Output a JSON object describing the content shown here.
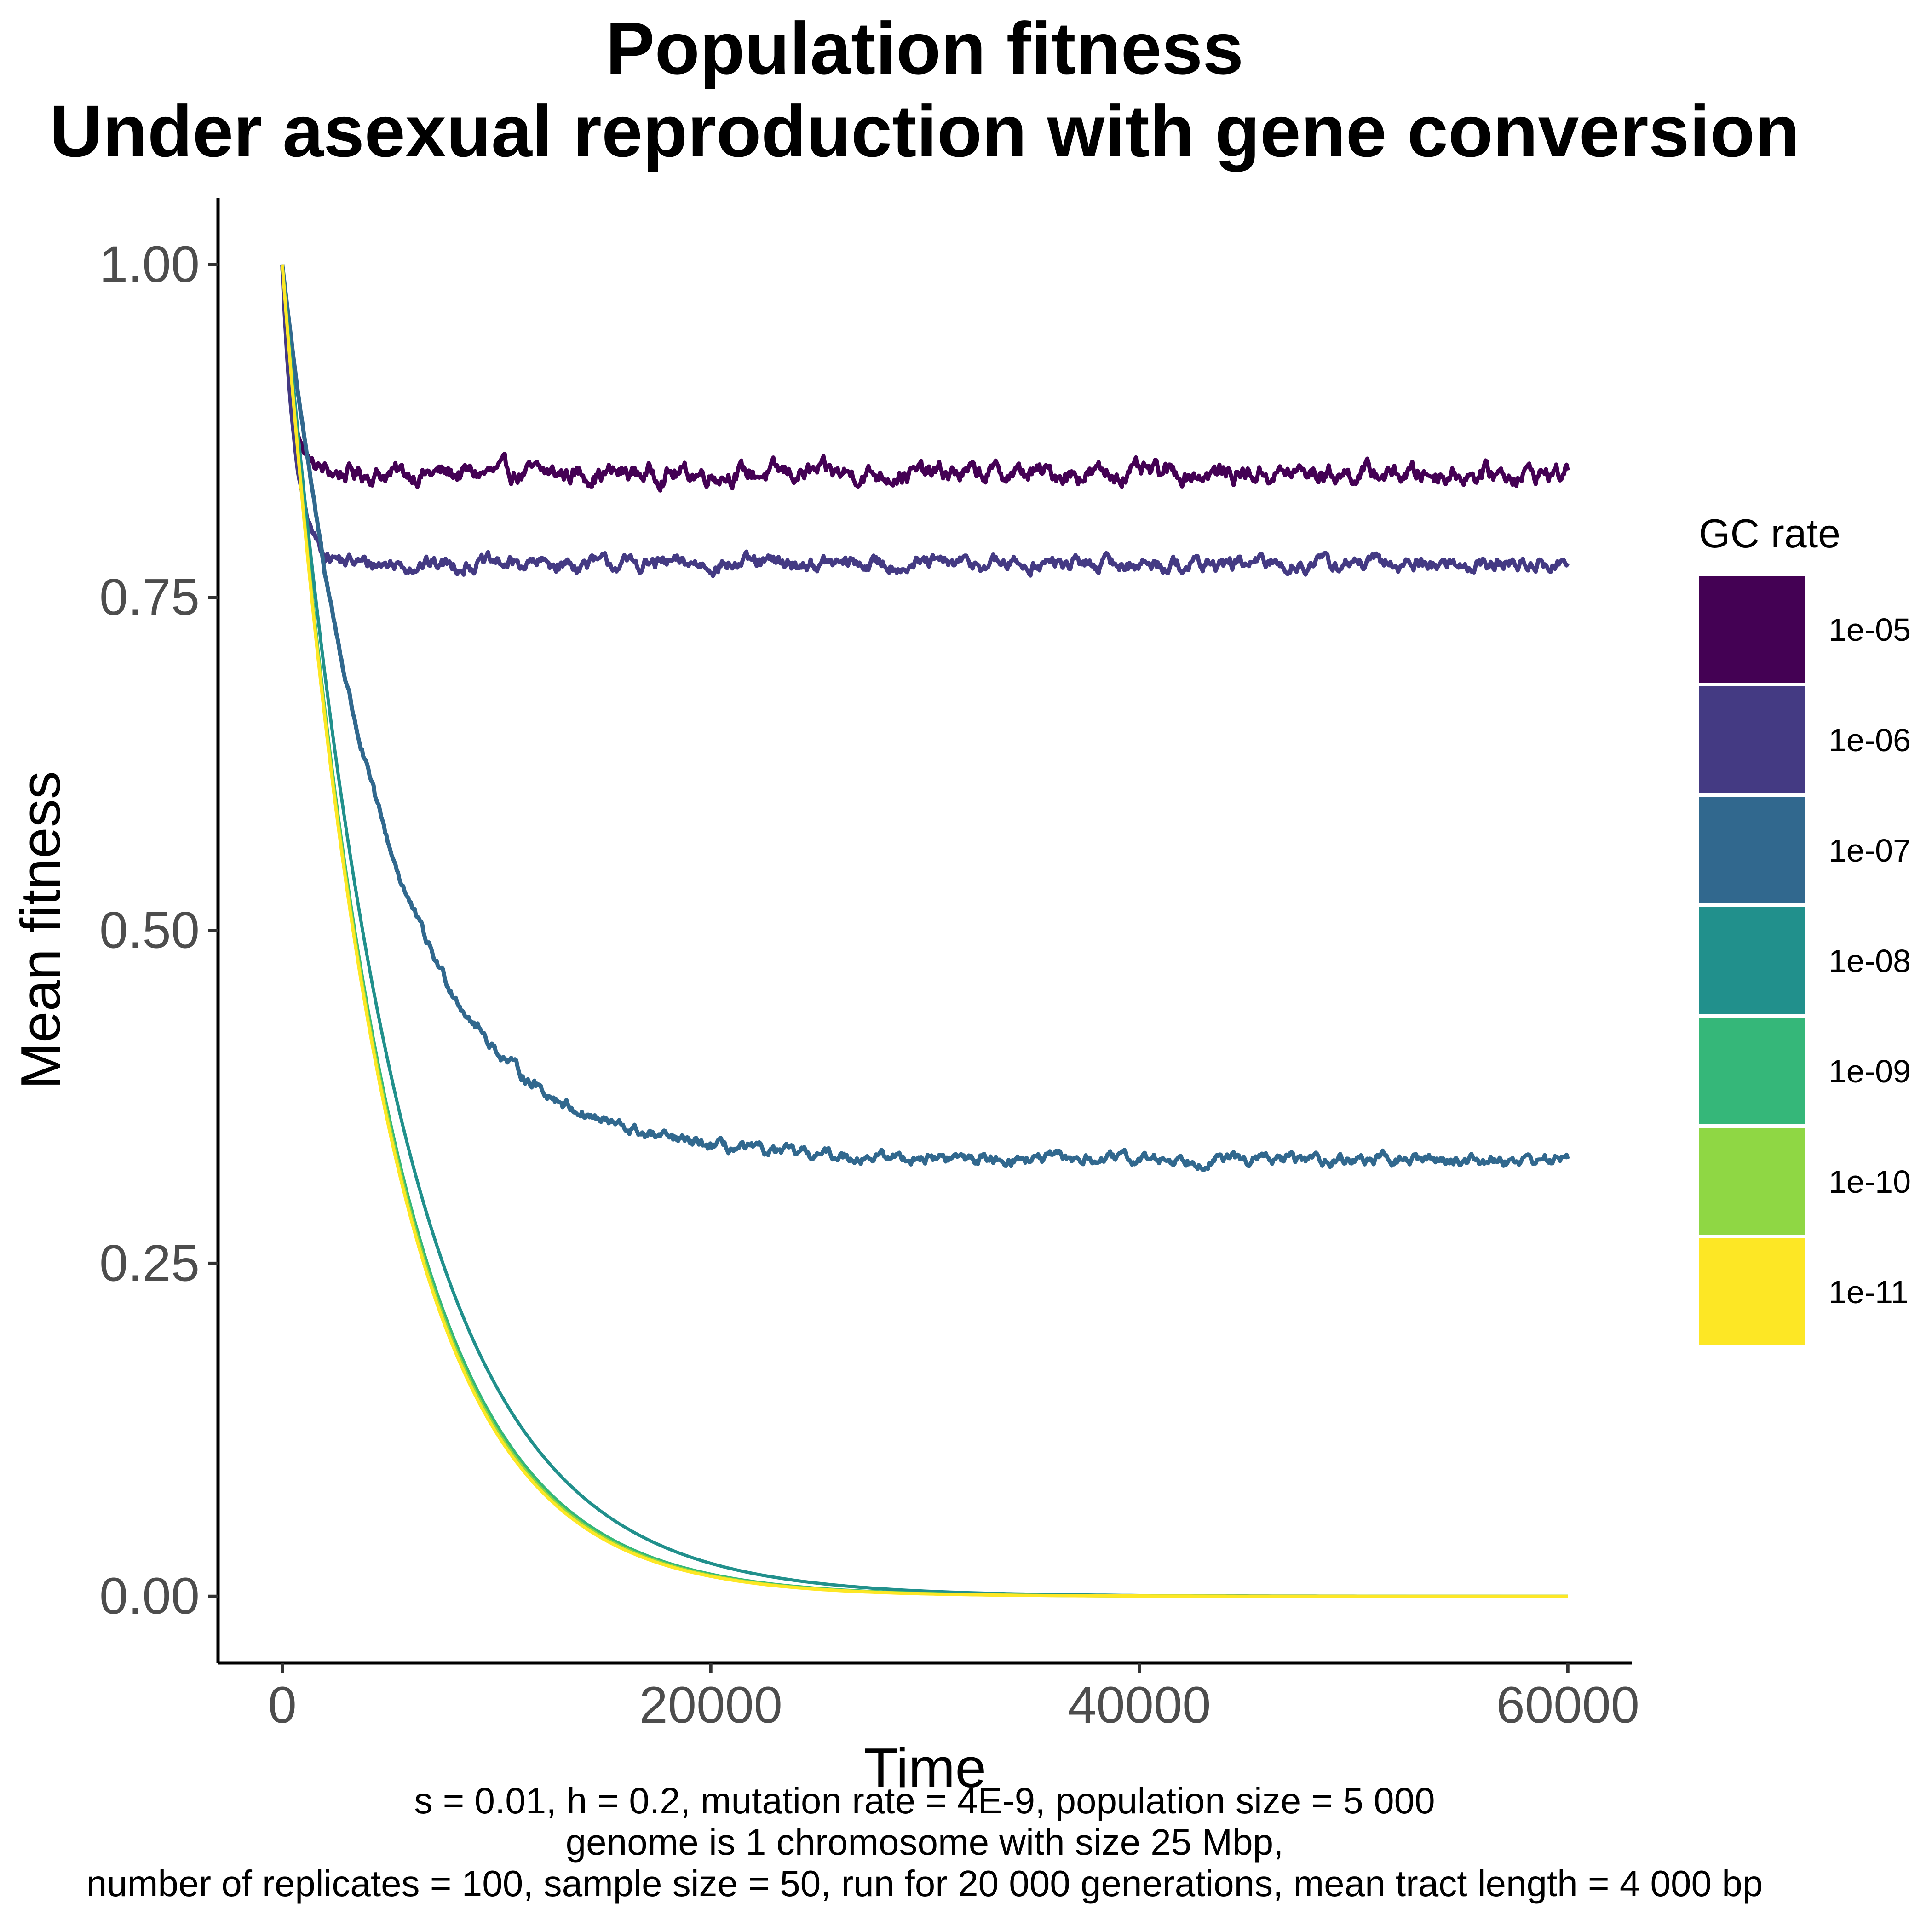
{
  "chart_data": {
    "type": "line",
    "title": "Population fitness",
    "subtitle": "Under asexual reproduction with gene conversion",
    "xlabel": "Time",
    "ylabel": "Mean fitness",
    "xlim": [
      -3000,
      63000
    ],
    "ylim": [
      -0.05,
      1.05
    ],
    "x_ticks": [
      0,
      20000,
      40000,
      60000
    ],
    "x_tick_labels": [
      "0",
      "20000",
      "40000",
      "60000"
    ],
    "y_ticks": [
      0,
      0.25,
      0.5,
      0.75,
      1.0
    ],
    "y_tick_labels": [
      "0.00",
      "0.25",
      "0.50",
      "0.75",
      "1.00"
    ],
    "grid": false,
    "legend": {
      "title": "GC rate",
      "position": "right"
    },
    "series": [
      {
        "name": "1e-05",
        "color": "#440154",
        "model": "plateau",
        "plateau": 0.843,
        "rate": 0.0022,
        "noise": 0.005
      },
      {
        "name": "1e-06",
        "color": "#443A83",
        "model": "plateau",
        "plateau": 0.775,
        "rate": 0.0016,
        "noise": 0.004
      },
      {
        "name": "1e-07",
        "color": "#31688E",
        "model": "plateau",
        "plateau": 0.328,
        "rate": 0.00021,
        "noise": 0.003
      },
      {
        "name": "1e-08",
        "color": "#21908C",
        "model": "decay",
        "plateau": 0,
        "rate": 0.000185,
        "noise": 0
      },
      {
        "name": "1e-09",
        "color": "#35B779",
        "model": "decay",
        "plateau": 0,
        "rate": 0.000205,
        "noise": 0
      },
      {
        "name": "1e-10",
        "color": "#8FD744",
        "model": "decay",
        "plateau": 0,
        "rate": 0.000208,
        "noise": 0
      },
      {
        "name": "1e-11",
        "color": "#FDE725",
        "model": "decay",
        "plateau": 0,
        "rate": 0.00021,
        "noise": 0
      }
    ]
  },
  "caption": [
    "s = 0.01, h = 0.2, mutation rate = 4E-9, population size = 5 000",
    "genome is 1 chromosome with size 25 Mbp,",
    "number of replicates = 100, sample size = 50, run for 20 000 generations, mean tract length = 4 000 bp"
  ]
}
